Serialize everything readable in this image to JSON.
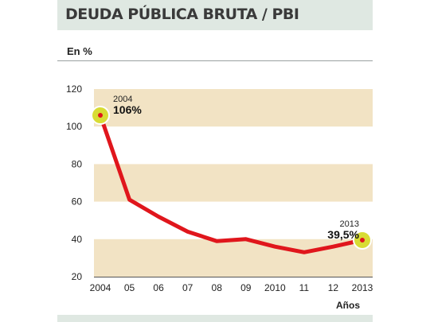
{
  "chart_data": {
    "type": "line",
    "title": "DEUDA PÚBLICA BRUTA / PBI",
    "unit_label": "En %",
    "xlabel": "Años",
    "ylabel": "",
    "categories": [
      "2004",
      "05",
      "06",
      "07",
      "08",
      "09",
      "2010",
      "11",
      "12",
      "2013"
    ],
    "y_ticks": [
      "120",
      "100",
      "80",
      "60",
      "40",
      "20"
    ],
    "ylim": [
      20,
      120
    ],
    "grid": "alternating horizontal bands",
    "series": [
      {
        "values": [
          106,
          61,
          52,
          44,
          39,
          40,
          36,
          33,
          36,
          39.5
        ],
        "color": "#e0161c"
      }
    ],
    "annotations": [
      {
        "category": "2004",
        "year_label": "2004",
        "value_label": "106%"
      },
      {
        "category": "2013",
        "year_label": "2013",
        "value_label": "39,5%"
      }
    ],
    "colors": {
      "band": "#f2e3c4",
      "line": "#e0161c",
      "marker": "#d8dc34",
      "header": "#dfe8e2"
    }
  }
}
